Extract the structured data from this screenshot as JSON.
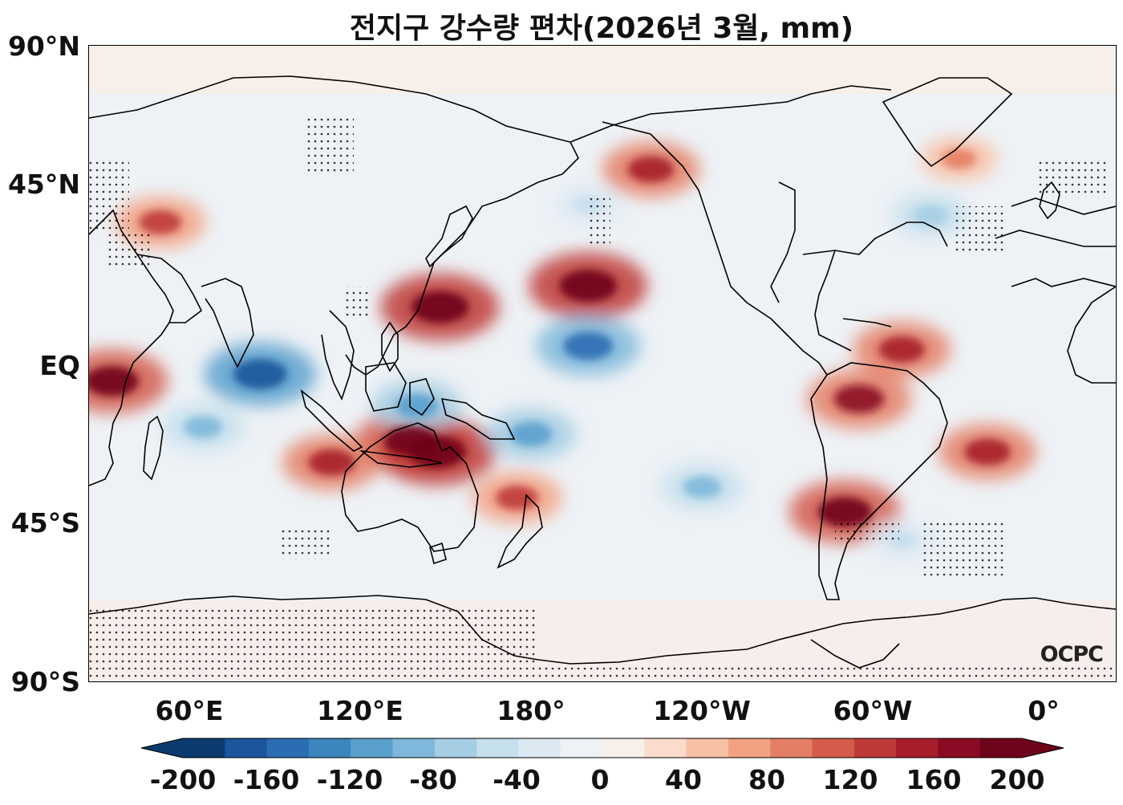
{
  "title": "전지구 강수량 편차(2026년 3월, mm)",
  "logo": "OCPC",
  "lat_labels": [
    "90°N",
    "45°N",
    "EQ",
    "45°S",
    "90°S"
  ],
  "lon_labels": [
    "60°E",
    "120°E",
    "180°",
    "120°W",
    "60°W",
    "0°"
  ],
  "colorbar": {
    "tick_labels": [
      "-200",
      "-160",
      "-120",
      "-80",
      "-40",
      "0",
      "40",
      "80",
      "120",
      "160",
      "200"
    ],
    "levels": [
      -200,
      -180,
      -160,
      -140,
      -120,
      -100,
      -80,
      -60,
      -40,
      -20,
      0,
      20,
      40,
      60,
      80,
      100,
      120,
      140,
      160,
      180,
      200
    ],
    "colors": [
      "#0c3a6e",
      "#1b559a",
      "#2b6db2",
      "#3c86bf",
      "#5aa0cd",
      "#7fb8da",
      "#a5cde3",
      "#c6dfed",
      "#dde9f2",
      "#eef2f6",
      "#f7efea",
      "#fbdccc",
      "#f8c0a5",
      "#f2a182",
      "#e47f65",
      "#d45c4c",
      "#be3a37",
      "#a51e2a",
      "#8a0b23",
      "#6e0419"
    ],
    "extend": "both"
  },
  "chart_data": {
    "type": "heatmap",
    "title": "전지구 강수량 편차(2026년 3월, mm)",
    "x_ticks": [
      "60°E",
      "120°E",
      "180°",
      "120°W",
      "60°W",
      "0°"
    ],
    "y_ticks": [
      "90°N",
      "45°N",
      "EQ",
      "45°S",
      "90°S"
    ],
    "lon_range": [
      25,
      385
    ],
    "lat_range": [
      -90,
      90
    ],
    "value_range": [
      -200,
      200
    ],
    "units": "mm",
    "anomalies": [
      {
        "lon": 148,
        "lat": 16,
        "value": 200
      },
      {
        "lon": 200,
        "lat": 22,
        "value": 200
      },
      {
        "lon": 138,
        "lat": -22,
        "value": 180
      },
      {
        "lon": 147,
        "lat": -25,
        "value": 200
      },
      {
        "lon": 110,
        "lat": -28,
        "value": 140
      },
      {
        "lon": 33,
        "lat": -5,
        "value": 180
      },
      {
        "lon": 50,
        "lat": 40,
        "value": 120
      },
      {
        "lon": 295,
        "lat": -10,
        "value": 160
      },
      {
        "lon": 310,
        "lat": 4,
        "value": 140
      },
      {
        "lon": 340,
        "lat": -25,
        "value": 140
      },
      {
        "lon": 290,
        "lat": -42,
        "value": 180
      },
      {
        "lon": 222,
        "lat": 55,
        "value": 140
      },
      {
        "lon": 330,
        "lat": 58,
        "value": 80
      },
      {
        "lon": 175,
        "lat": -38,
        "value": 120
      },
      {
        "lon": 200,
        "lat": 5,
        "value": -160
      },
      {
        "lon": 85,
        "lat": -3,
        "value": -180
      },
      {
        "lon": 65,
        "lat": -18,
        "value": -100
      },
      {
        "lon": 140,
        "lat": -12,
        "value": -120
      },
      {
        "lon": 180,
        "lat": -20,
        "value": -120
      },
      {
        "lon": 240,
        "lat": -35,
        "value": -100
      },
      {
        "lon": 320,
        "lat": 42,
        "value": -80
      },
      {
        "lon": 200,
        "lat": 45,
        "value": -60
      },
      {
        "lon": 310,
        "lat": -50,
        "value": -60
      }
    ]
  }
}
